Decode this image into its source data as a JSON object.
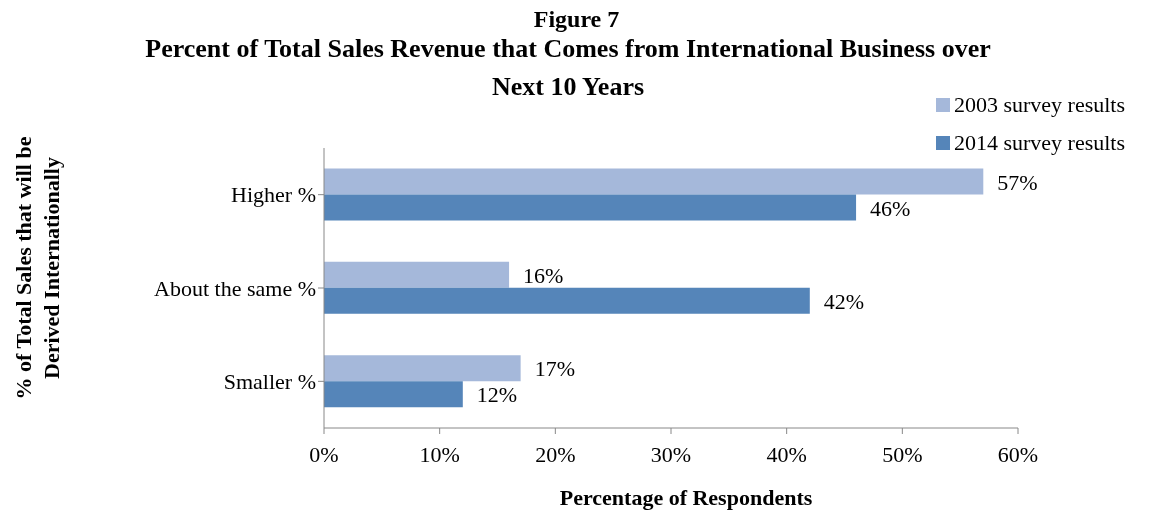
{
  "chart_data": {
    "type": "bar",
    "orientation": "horizontal",
    "title": "Percent of Total Sales Revenue that Comes from International Business over Next 10 Years",
    "xlabel": "Percentage of Respondents",
    "ylabel": "% of Total Sales that will be Derived Internationally",
    "annotations": [
      "Figure 7"
    ],
    "categories": [
      "Higher %",
      "About the same %",
      "Smaller %"
    ],
    "series": [
      {
        "name": "2003 survey results",
        "color": "#a5b8da",
        "values": [
          57,
          16,
          17
        ],
        "value_labels": [
          "57%",
          "16%",
          "17%"
        ]
      },
      {
        "name": "2014 survey results",
        "color": "#5585b9",
        "values": [
          46,
          42,
          12
        ],
        "value_labels": [
          "46%",
          "42%",
          "12%"
        ]
      }
    ],
    "xlim": [
      0,
      60
    ],
    "xticks": [
      {
        "value": 0,
        "label": "0%"
      },
      {
        "value": 10,
        "label": "10%"
      },
      {
        "value": 20,
        "label": "20%"
      },
      {
        "value": 30,
        "label": "30%"
      },
      {
        "value": 40,
        "label": "40%"
      },
      {
        "value": 50,
        "label": "50%"
      },
      {
        "value": 60,
        "label": "60%"
      }
    ],
    "grid": false,
    "legend": "top right"
  }
}
